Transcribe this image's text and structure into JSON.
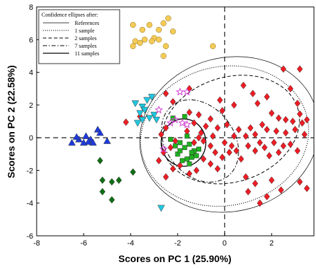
{
  "chart_data": {
    "type": "scatter",
    "xlabel": "Scores on PC 1 (25.90%)",
    "ylabel": "Scores on PC 2 (22.58%)",
    "xlim": [
      -8,
      3.8
    ],
    "ylim": [
      -6,
      8
    ],
    "x_ticks": [
      -8,
      -6,
      -4,
      -2,
      0,
      2
    ],
    "y_ticks": [
      -6,
      -4,
      -2,
      0,
      2,
      4,
      6,
      8
    ],
    "zero_lines": "dashed",
    "grid": false,
    "legend": {
      "title": "Confidence ellipses after:",
      "placement": "top-left",
      "entries": [
        {
          "label": "References",
          "style": "thin-solid"
        },
        {
          "label": "1 sample",
          "style": "dotted"
        },
        {
          "label": "2 samples",
          "style": "dashed"
        },
        {
          "label": "7 samples",
          "style": "dash-dot"
        },
        {
          "label": "11 samples",
          "style": "solid"
        }
      ]
    },
    "ellipses": [
      {
        "style": "thin-solid",
        "cx": 0.2,
        "cy": 0.2,
        "rx": 3.85,
        "ry": 4.7,
        "angle": -15
      },
      {
        "style": "dotted",
        "cx": 0.0,
        "cy": 0.1,
        "rx": 3.6,
        "ry": 4.25,
        "angle": -12
      },
      {
        "style": "dashed",
        "cx": 0.25,
        "cy": 0.5,
        "rx": 3.0,
        "ry": 3.2,
        "angle": -18
      },
      {
        "style": "dash-dot",
        "cx": -1.05,
        "cy": -0.2,
        "rx": 1.45,
        "ry": 2.75,
        "angle": -38
      },
      {
        "style": "solid",
        "cx": -1.75,
        "cy": -0.3,
        "rx": 0.95,
        "ry": 1.45,
        "angle": 0
      }
    ],
    "series": [
      {
        "marker": "diamond",
        "color": "#ee1c24",
        "points": [
          [
            -4.2,
            0.95
          ],
          [
            -3.6,
            1.3
          ],
          [
            -2.5,
            2.7
          ],
          [
            -2.2,
            2.2
          ],
          [
            -1.5,
            3.0
          ],
          [
            -1.5,
            1.55
          ],
          [
            -1.1,
            1.4
          ],
          [
            -0.6,
            1.15
          ],
          [
            -0.2,
            2.3
          ],
          [
            -0.1,
            1.65
          ],
          [
            0.4,
            2.0
          ],
          [
            0.8,
            3.2
          ],
          [
            1.2,
            2.7
          ],
          [
            1.4,
            2.1
          ],
          [
            1.8,
            2.5
          ],
          [
            2.5,
            4.2
          ],
          [
            3.2,
            4.2
          ],
          [
            2.8,
            3.0
          ],
          [
            3.1,
            2.1
          ],
          [
            3.2,
            1.45
          ],
          [
            2.0,
            1.5
          ],
          [
            2.3,
            1.2
          ],
          [
            2.6,
            1.1
          ],
          [
            2.9,
            1.0
          ],
          [
            3.3,
            0.9
          ],
          [
            3.5,
            1.1
          ],
          [
            2.2,
            0.4
          ],
          [
            2.6,
            0.3
          ],
          [
            3.0,
            0.5
          ],
          [
            3.4,
            0.2
          ],
          [
            1.6,
            0.8
          ],
          [
            1.8,
            0.5
          ],
          [
            1.1,
            0.6
          ],
          [
            1.3,
            0.2
          ],
          [
            0.6,
            0.5
          ],
          [
            0.9,
            0.1
          ],
          [
            0.1,
            0.8
          ],
          [
            0.4,
            0.1
          ],
          [
            -0.3,
            0.6
          ],
          [
            -0.5,
            0.1
          ],
          [
            -0.8,
            0.7
          ],
          [
            -1.0,
            0.3
          ],
          [
            -1.3,
            0.9
          ],
          [
            -1.6,
            0.4
          ],
          [
            -2.5,
            0.6
          ],
          [
            -2.7,
            0.2
          ],
          [
            -2.1,
            -0.2
          ],
          [
            -2.8,
            -1.4
          ],
          [
            -2.5,
            -2.4
          ],
          [
            -2.2,
            -1.9
          ],
          [
            -1.9,
            -1.7
          ],
          [
            -1.5,
            -2.2
          ],
          [
            -1.2,
            -2.0
          ],
          [
            -0.9,
            -1.3
          ],
          [
            -0.6,
            -1.6
          ],
          [
            -0.3,
            -1.9
          ],
          [
            -0.1,
            -1.2
          ],
          [
            0.2,
            -0.9
          ],
          [
            0.5,
            -0.8
          ],
          [
            0.7,
            -1.3
          ],
          [
            1.0,
            -0.5
          ],
          [
            1.3,
            -0.8
          ],
          [
            1.5,
            -0.3
          ],
          [
            1.7,
            -0.6
          ],
          [
            1.9,
            -1.1
          ],
          [
            2.1,
            -0.3
          ],
          [
            2.3,
            -0.9
          ],
          [
            2.5,
            -0.5
          ],
          [
            2.8,
            -0.4
          ],
          [
            3.1,
            -0.8
          ],
          [
            0.9,
            -2.4
          ],
          [
            1.3,
            -2.8
          ],
          [
            2.0,
            -2.6
          ],
          [
            1.0,
            -3.3
          ],
          [
            1.5,
            -4.0
          ],
          [
            1.8,
            -3.6
          ],
          [
            2.4,
            -3.2
          ],
          [
            3.2,
            -2.7
          ],
          [
            3.5,
            -3.1
          ],
          [
            -0.6,
            -0.5
          ],
          [
            -0.9,
            -0.2
          ],
          [
            0.0,
            -0.3
          ],
          [
            0.3,
            -0.5
          ],
          [
            -1.3,
            -0.3
          ],
          [
            -1.1,
            0.0
          ],
          [
            -2.3,
            -0.6
          ],
          [
            -2.6,
            -0.9
          ],
          [
            -0.4,
            -0.9
          ]
        ]
      },
      {
        "marker": "square",
        "color": "#1eb21e",
        "points": [
          [
            -2.1,
            -0.5
          ],
          [
            -1.9,
            -0.3
          ],
          [
            -1.7,
            -0.6
          ],
          [
            -1.5,
            -0.4
          ],
          [
            -1.3,
            -0.8
          ],
          [
            -1.1,
            -0.7
          ],
          [
            -2.0,
            -1.0
          ],
          [
            -1.8,
            -1.4
          ],
          [
            -1.6,
            -1.3
          ],
          [
            -1.4,
            -1.2
          ],
          [
            -1.2,
            -1.1
          ],
          [
            -2.3,
            -0.1
          ],
          [
            -1.6,
            0.1
          ],
          [
            -1.4,
            -0.9
          ],
          [
            -1.9,
            -0.8
          ],
          [
            -1.7,
            1.3
          ],
          [
            -2.2,
            1.2
          ],
          [
            -1.5,
            -1.6
          ]
        ]
      },
      {
        "marker": "triangle-up",
        "color": "#1e3adc",
        "points": [
          [
            -6.5,
            -0.3
          ],
          [
            -6.2,
            -0.1
          ],
          [
            -6.0,
            -0.3
          ],
          [
            -5.9,
            0.1
          ],
          [
            -5.7,
            -0.1
          ],
          [
            -5.6,
            -0.3
          ],
          [
            -5.4,
            0.5
          ],
          [
            -5.3,
            0.3
          ],
          [
            -5.0,
            -0.2
          ],
          [
            -6.3,
            0.05
          ],
          [
            -5.8,
            -0.25
          ]
        ]
      },
      {
        "marker": "triangle-down",
        "color": "#1ec8e0",
        "points": [
          [
            -3.8,
            2.1
          ],
          [
            -3.5,
            1.9
          ],
          [
            -3.3,
            2.3
          ],
          [
            -3.1,
            2.5
          ],
          [
            -3.6,
            1.5
          ],
          [
            -3.4,
            1.7
          ],
          [
            -3.0,
            1.4
          ],
          [
            -3.7,
            0.9
          ],
          [
            -3.5,
            1.1
          ],
          [
            -3.2,
            1.2
          ],
          [
            -2.9,
            1.1
          ],
          [
            -2.7,
            -4.3
          ]
        ]
      },
      {
        "marker": "diamond",
        "color": "#0f6e14",
        "points": [
          [
            -5.3,
            -1.4
          ],
          [
            -5.2,
            -2.6
          ],
          [
            -4.8,
            -2.7
          ],
          [
            -5.2,
            -3.3
          ],
          [
            -4.8,
            -3.8
          ],
          [
            -4.5,
            -2.6
          ],
          [
            -3.9,
            -2.1
          ]
        ]
      },
      {
        "marker": "star",
        "color": "#d040d0",
        "points": [
          [
            -2.8,
            1.7
          ],
          [
            -2.3,
            0.9
          ],
          [
            -2.1,
            1.1
          ],
          [
            -1.8,
            0.9
          ],
          [
            -1.6,
            0.8
          ],
          [
            -1.9,
            2.8
          ],
          [
            -1.6,
            2.8
          ],
          [
            -2.6,
            -0.7
          ]
        ]
      },
      {
        "marker": "circle",
        "color": "#f5cb57",
        "points": [
          [
            -3.9,
            6.9
          ],
          [
            -3.5,
            6.6
          ],
          [
            -3.2,
            6.9
          ],
          [
            -3.0,
            6.1
          ],
          [
            -2.8,
            6.6
          ],
          [
            -2.6,
            7.0
          ],
          [
            -2.4,
            7.3
          ],
          [
            -2.8,
            6.0
          ],
          [
            -3.4,
            6.0
          ],
          [
            -3.8,
            5.9
          ],
          [
            -3.6,
            5.8
          ],
          [
            -2.2,
            6.5
          ],
          [
            -2.5,
            5.6
          ],
          [
            -2.6,
            5.0
          ],
          [
            -0.5,
            5.6
          ],
          [
            -3.1,
            5.9
          ],
          [
            -3.9,
            5.6
          ]
        ]
      }
    ]
  }
}
